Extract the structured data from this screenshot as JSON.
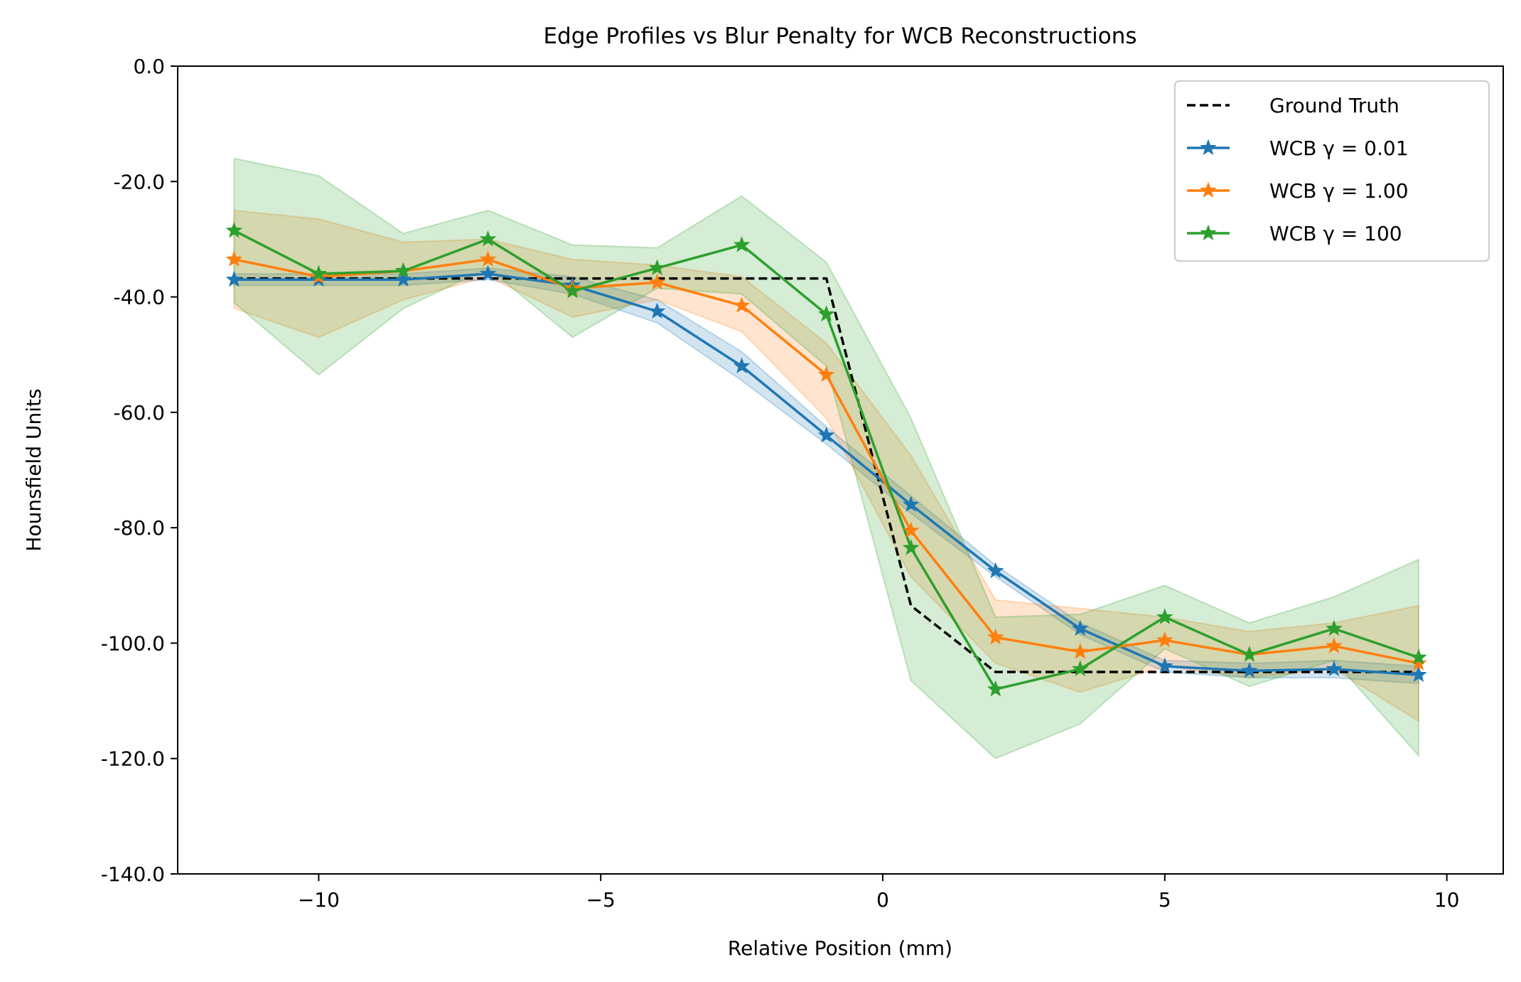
{
  "chart_data": {
    "type": "line",
    "title": "Edge Profiles vs Blur Penalty for WCB Reconstructions",
    "xlabel": "Relative Position (mm)",
    "ylabel": "Hounsfield Units",
    "xlim": [
      -12.5,
      11.0
    ],
    "ylim": [
      -140,
      0
    ],
    "xticks": [
      -10,
      -5,
      0,
      5,
      10
    ],
    "xtick_labels": [
      "−10",
      "−5",
      "0",
      "5",
      "10"
    ],
    "yticks": [
      0,
      -20,
      -40,
      -60,
      -80,
      -100,
      -120,
      -140
    ],
    "ytick_labels": [
      "0.0",
      "-20.0",
      "-40.0",
      "-60.0",
      "-80.0",
      "-100.0",
      "-120.0",
      "-140.0"
    ],
    "grid": false,
    "legend_position": "upper right",
    "x": [
      -11.5,
      -10.0,
      -8.5,
      -7.0,
      -5.5,
      -4.0,
      -2.5,
      -1.0,
      0.5,
      2.0,
      3.5,
      5.0,
      6.5,
      8.0,
      9.5
    ],
    "ground_truth": {
      "name": "Ground Truth",
      "color": "#000000",
      "style": "dashed",
      "x": [
        -11.5,
        -1.0,
        0.5,
        2.0,
        9.5
      ],
      "y": [
        -36.8,
        -36.8,
        -93.5,
        -105.0,
        -105.0
      ]
    },
    "series": [
      {
        "name": "WCB γ = 0.01",
        "color": "#1f77b4",
        "values": [
          -37.0,
          -37.0,
          -37.0,
          -36.0,
          -38.0,
          -42.5,
          -52.0,
          -64.0,
          -76.0,
          -87.5,
          -97.5,
          -104.0,
          -104.8,
          -104.5,
          -105.5
        ],
        "lower": [
          -38.0,
          -38.0,
          -38.0,
          -37.0,
          -39.5,
          -44.5,
          -54.5,
          -65.5,
          -77.5,
          -88.5,
          -98.5,
          -105.0,
          -106.0,
          -106.0,
          -107.0
        ],
        "upper": [
          -36.0,
          -36.0,
          -36.0,
          -35.0,
          -36.5,
          -40.5,
          -49.5,
          -62.5,
          -74.5,
          -86.5,
          -96.5,
          -103.0,
          -103.5,
          -103.0,
          -104.0
        ]
      },
      {
        "name": "WCB γ = 1.00",
        "color": "#ff7f0e",
        "values": [
          -33.5,
          -36.5,
          -35.5,
          -33.5,
          -38.5,
          -37.5,
          -41.5,
          -53.5,
          -80.5,
          -99.0,
          -101.5,
          -99.5,
          -102.0,
          -100.5,
          -103.5
        ],
        "lower": [
          -42.0,
          -47.0,
          -40.5,
          -36.5,
          -43.5,
          -40.5,
          -46.0,
          -61.0,
          -88.5,
          -103.5,
          -108.5,
          -104.0,
          -106.0,
          -104.5,
          -113.5
        ],
        "upper": [
          -25.0,
          -26.5,
          -30.5,
          -30.0,
          -33.5,
          -34.5,
          -36.5,
          -48.0,
          -67.5,
          -92.5,
          -94.0,
          -95.5,
          -98.0,
          -96.5,
          -93.5
        ]
      },
      {
        "name": "WCB γ = 100",
        "color": "#2ca02c",
        "values": [
          -28.5,
          -36.0,
          -35.5,
          -30.0,
          -39.0,
          -35.0,
          -31.0,
          -43.0,
          -83.5,
          -108.0,
          -104.5,
          -95.5,
          -102.0,
          -97.5,
          -102.5
        ],
        "lower": [
          -41.0,
          -53.5,
          -42.0,
          -35.0,
          -47.0,
          -38.5,
          -39.5,
          -52.0,
          -106.5,
          -120.0,
          -114.0,
          -101.0,
          -107.5,
          -103.0,
          -119.5
        ],
        "upper": [
          -16.0,
          -19.0,
          -29.0,
          -25.0,
          -31.0,
          -31.5,
          -22.5,
          -34.0,
          -61.0,
          -95.5,
          -95.0,
          -90.0,
          -96.5,
          -92.0,
          -85.5
        ]
      }
    ]
  }
}
